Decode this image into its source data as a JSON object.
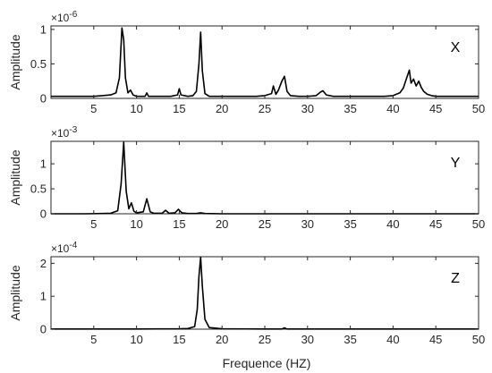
{
  "chart_data": [
    {
      "type": "line",
      "panel_label": "X",
      "ylabel": "Amplitude",
      "exponent_base": "×10",
      "exponent": "-6",
      "xlim": [
        0,
        50
      ],
      "ylim": [
        0,
        1.05
      ],
      "xticks": [
        5,
        10,
        15,
        20,
        25,
        30,
        35,
        40,
        45,
        50
      ],
      "yticks": [
        0,
        0.5,
        1
      ],
      "ytick_labels": [
        "0",
        "0.5",
        "1"
      ],
      "x": [
        0,
        1,
        2,
        3,
        4,
        5,
        6,
        7,
        7.6,
        8,
        8.3,
        8.5,
        8.7,
        9,
        9.3,
        9.6,
        10,
        11,
        11.2,
        11.4,
        12,
        13,
        14,
        14.8,
        15,
        15.2,
        16,
        16.6,
        17,
        17.3,
        17.5,
        17.7,
        18,
        18.5,
        19,
        20,
        21,
        22,
        23,
        24,
        25,
        25.8,
        26,
        26.3,
        26.6,
        27,
        27.3,
        27.6,
        28,
        29,
        30,
        31,
        31.5,
        31.8,
        32.2,
        33,
        34,
        35,
        36,
        37,
        38,
        39,
        40,
        40.8,
        41.2,
        41.6,
        41.9,
        42.1,
        42.4,
        42.7,
        43,
        43.3,
        43.6,
        44,
        44.5,
        45,
        46,
        47,
        48,
        49,
        50
      ],
      "y": [
        0.03,
        0.03,
        0.03,
        0.03,
        0.03,
        0.03,
        0.04,
        0.05,
        0.08,
        0.3,
        1.02,
        0.85,
        0.3,
        0.08,
        0.12,
        0.05,
        0.03,
        0.03,
        0.08,
        0.03,
        0.03,
        0.03,
        0.03,
        0.05,
        0.14,
        0.05,
        0.03,
        0.04,
        0.1,
        0.5,
        0.96,
        0.4,
        0.07,
        0.03,
        0.03,
        0.03,
        0.03,
        0.03,
        0.03,
        0.03,
        0.04,
        0.07,
        0.18,
        0.06,
        0.12,
        0.25,
        0.32,
        0.1,
        0.04,
        0.03,
        0.03,
        0.04,
        0.09,
        0.11,
        0.05,
        0.03,
        0.03,
        0.03,
        0.03,
        0.03,
        0.03,
        0.03,
        0.04,
        0.08,
        0.15,
        0.3,
        0.41,
        0.22,
        0.28,
        0.18,
        0.25,
        0.16,
        0.1,
        0.06,
        0.04,
        0.03,
        0.03,
        0.03,
        0.03,
        0.03,
        0.03
      ]
    },
    {
      "type": "line",
      "panel_label": "Y",
      "ylabel": "Amplitude",
      "exponent_base": "×10",
      "exponent": "-3",
      "xlim": [
        0,
        50
      ],
      "ylim": [
        0,
        1.45
      ],
      "xticks": [
        5,
        10,
        15,
        20,
        25,
        30,
        35,
        40,
        45,
        50
      ],
      "yticks": [
        0,
        0.5,
        1
      ],
      "ytick_labels": [
        "0",
        "0.5",
        "1"
      ],
      "x": [
        0,
        2,
        4,
        6,
        7,
        7.8,
        8.2,
        8.5,
        8.8,
        9.1,
        9.4,
        9.7,
        10,
        10.8,
        11.2,
        11.6,
        12,
        13,
        13.4,
        13.8,
        14.5,
        14.9,
        15.3,
        16,
        17,
        17.5,
        18,
        20,
        25,
        30,
        35,
        40,
        45,
        50
      ],
      "y": [
        0,
        0,
        0,
        0.005,
        0.01,
        0.06,
        0.6,
        1.43,
        0.45,
        0.1,
        0.22,
        0.05,
        0.02,
        0.04,
        0.3,
        0.04,
        0.01,
        0.01,
        0.07,
        0.01,
        0.02,
        0.09,
        0.02,
        0.005,
        0.005,
        0.02,
        0.005,
        0,
        0,
        0,
        0,
        0,
        0,
        0
      ]
    },
    {
      "type": "line",
      "panel_label": "Z",
      "ylabel": "Amplitude",
      "exponent_base": "×10",
      "exponent": "-4",
      "xlim": [
        0,
        50
      ],
      "ylim": [
        0,
        2.2
      ],
      "xticks": [
        5,
        10,
        15,
        20,
        25,
        30,
        35,
        40,
        45,
        50
      ],
      "yticks": [
        0,
        1,
        2
      ],
      "ytick_labels": [
        "0",
        "1",
        "2"
      ],
      "x": [
        0,
        5,
        10,
        15,
        16,
        16.8,
        17.1,
        17.3,
        17.5,
        17.7,
        18,
        18.5,
        20,
        25,
        27,
        27.3,
        27.6,
        30,
        35,
        40,
        45,
        50
      ],
      "y": [
        0.005,
        0.005,
        0.005,
        0.01,
        0.02,
        0.08,
        0.6,
        1.6,
        2.18,
        1.3,
        0.3,
        0.05,
        0.01,
        0.005,
        0.005,
        0.04,
        0.005,
        0.005,
        0.005,
        0.005,
        0.005,
        0.005
      ]
    }
  ],
  "shared_xlabel": "Frequence (HZ)",
  "colors": {
    "line": "#000000",
    "axes": "#262626",
    "background": "#ffffff"
  }
}
